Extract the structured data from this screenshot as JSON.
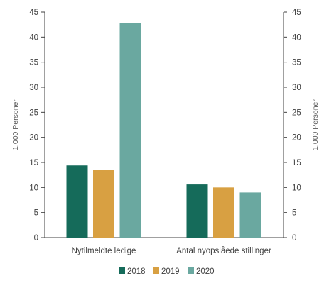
{
  "chart_data": {
    "type": "bar",
    "title": "",
    "categories": [
      "Nytilmeldte ledige",
      "Antal nyopslåede stillinger"
    ],
    "series": [
      {
        "name": "2018",
        "values": [
          14.4,
          10.6
        ],
        "color": "#156b5a"
      },
      {
        "name": "2019",
        "values": [
          13.5,
          10.0
        ],
        "color": "#d8a042"
      },
      {
        "name": "2020",
        "values": [
          42.8,
          9.0
        ],
        "color": "#6aa8a0"
      }
    ],
    "ylabel_left": "1.000 Personer",
    "ylabel_right": "1.000 Personer",
    "ylim": [
      0,
      45
    ],
    "yticks": [
      0,
      5,
      10,
      15,
      20,
      25,
      30,
      35,
      40,
      45
    ],
    "grid": false,
    "legend_position": "bottom-center"
  }
}
